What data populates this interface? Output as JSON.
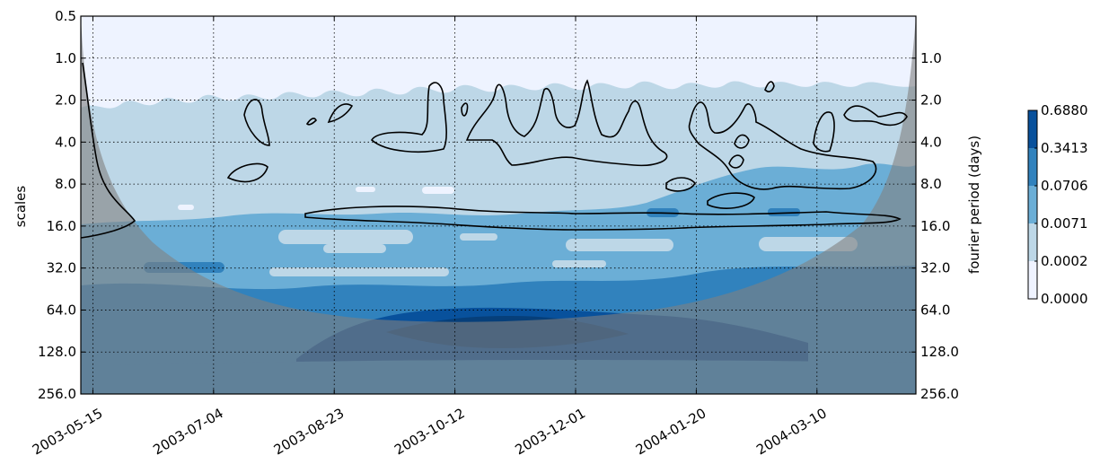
{
  "chart_data": {
    "type": "heatmap",
    "title": "",
    "xlabel": "",
    "ylabel": "scales",
    "ylabel_right": "fourier period (days)",
    "y_scale": "log2",
    "y_inverted": true,
    "ylim": [
      0.5,
      256.0
    ],
    "xlim": [
      "2003-05-10",
      "2004-04-20"
    ],
    "grid": true,
    "x_ticks": [
      "2003-05-15",
      "2003-07-04",
      "2003-08-23",
      "2003-10-12",
      "2003-12-01",
      "2004-01-20",
      "2004-03-10"
    ],
    "y_ticks_left": [
      "0.5",
      "1.0",
      "2.0",
      "4.0",
      "8.0",
      "16.0",
      "32.0",
      "64.0",
      "128.0",
      "256.0"
    ],
    "y_ticks_right": [
      "1.0",
      "2.0",
      "4.0",
      "8.0",
      "16.0",
      "32.0",
      "64.0",
      "128.0",
      "256.0"
    ],
    "colorbar": {
      "labels": [
        "0.6880",
        "0.3413",
        "0.0706",
        "0.0071",
        "0.0002",
        "0.0000"
      ],
      "colors": [
        "#08519c",
        "#3182bd",
        "#6baed6",
        "#bdd7e7",
        "#eff3ff"
      ]
    },
    "contour_levels_colors": [
      "#eef3ff",
      "#bdd7e7",
      "#6baed6",
      "#3182bd",
      "#08519c"
    ],
    "cone_of_influence_color": "#808080"
  }
}
